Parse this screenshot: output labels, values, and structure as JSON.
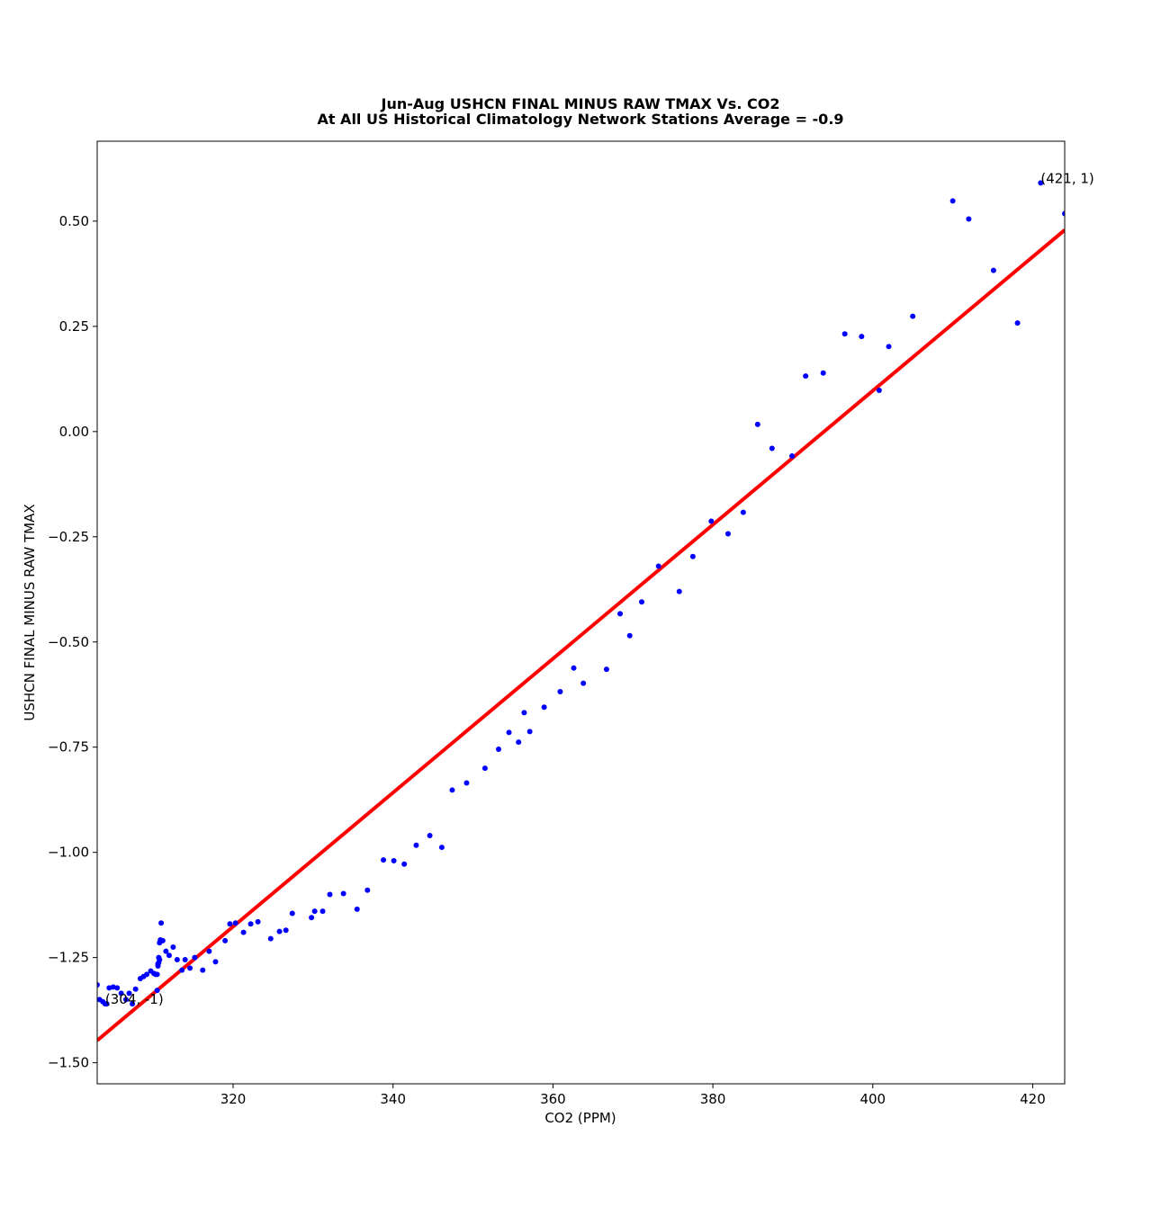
{
  "chart_data": {
    "type": "scatter",
    "title": "Jun-Aug USHCN FINAL MINUS RAW TMAX Vs. CO2",
    "subtitle": "At All US Historical Climatology Network Stations Average = -0.9",
    "xlabel": "CO2 (PPM)",
    "ylabel": "USHCN FINAL MINUS RAW TMAX",
    "xlim": [
      303,
      424
    ],
    "ylim": [
      -1.55,
      0.69
    ],
    "xticks": [
      320,
      340,
      360,
      380,
      400,
      420
    ],
    "xtick_labels": [
      "320",
      "340",
      "360",
      "380",
      "400",
      "420"
    ],
    "yticks": [
      -1.5,
      -1.25,
      -1.0,
      -0.75,
      -0.5,
      -0.25,
      0.0,
      0.25,
      0.5
    ],
    "ytick_labels": [
      "−1.50",
      "−1.25",
      "−1.00",
      "−0.75",
      "−0.50",
      "−0.25",
      "0.00",
      "0.25",
      "0.50"
    ],
    "grid": false,
    "point_color": "#0000ff",
    "trend_color": "#ff0000",
    "trendline": {
      "x": [
        303,
        424
      ],
      "y": [
        -1.447,
        0.479
      ]
    },
    "points": [
      [
        303.0,
        -1.315
      ],
      [
        303.3,
        -1.35
      ],
      [
        303.7,
        -1.355
      ],
      [
        304.0,
        -1.36
      ],
      [
        304.2,
        -1.36
      ],
      [
        304.5,
        -1.322
      ],
      [
        305.0,
        -1.32
      ],
      [
        305.5,
        -1.322
      ],
      [
        306.0,
        -1.335
      ],
      [
        306.6,
        -1.35
      ],
      [
        307.0,
        -1.335
      ],
      [
        307.4,
        -1.36
      ],
      [
        307.8,
        -1.325
      ],
      [
        308.4,
        -1.3
      ],
      [
        308.8,
        -1.295
      ],
      [
        309.2,
        -1.29
      ],
      [
        309.7,
        -1.282
      ],
      [
        310.1,
        -1.288
      ],
      [
        310.3,
        -1.29
      ],
      [
        310.5,
        -1.328
      ],
      [
        310.5,
        -1.29
      ],
      [
        310.6,
        -1.27
      ],
      [
        310.6,
        -1.265
      ],
      [
        310.7,
        -1.25
      ],
      [
        310.7,
        -1.262
      ],
      [
        310.8,
        -1.255
      ],
      [
        310.8,
        -1.215
      ],
      [
        310.9,
        -1.208
      ],
      [
        311.0,
        -1.168
      ],
      [
        311.2,
        -1.21
      ],
      [
        311.6,
        -1.235
      ],
      [
        312.0,
        -1.245
      ],
      [
        312.5,
        -1.225
      ],
      [
        313.0,
        -1.255
      ],
      [
        313.6,
        -1.28
      ],
      [
        314.0,
        -1.255
      ],
      [
        314.6,
        -1.275
      ],
      [
        315.2,
        -1.25
      ],
      [
        316.2,
        -1.28
      ],
      [
        317.0,
        -1.235
      ],
      [
        317.8,
        -1.26
      ],
      [
        319.0,
        -1.21
      ],
      [
        319.6,
        -1.17
      ],
      [
        320.3,
        -1.168
      ],
      [
        321.3,
        -1.19
      ],
      [
        322.2,
        -1.17
      ],
      [
        323.1,
        -1.165
      ],
      [
        324.7,
        -1.205
      ],
      [
        325.8,
        -1.188
      ],
      [
        326.6,
        -1.185
      ],
      [
        327.4,
        -1.145
      ],
      [
        329.8,
        -1.155
      ],
      [
        330.2,
        -1.14
      ],
      [
        331.2,
        -1.14
      ],
      [
        332.1,
        -1.1
      ],
      [
        333.8,
        -1.098
      ],
      [
        335.5,
        -1.135
      ],
      [
        336.8,
        -1.09
      ],
      [
        338.8,
        -1.018
      ],
      [
        340.1,
        -1.02
      ],
      [
        341.4,
        -1.028
      ],
      [
        342.9,
        -0.983
      ],
      [
        344.6,
        -0.96
      ],
      [
        346.1,
        -0.988
      ],
      [
        347.4,
        -0.852
      ],
      [
        349.2,
        -0.835
      ],
      [
        351.5,
        -0.8
      ],
      [
        353.2,
        -0.755
      ],
      [
        354.5,
        -0.715
      ],
      [
        355.7,
        -0.738
      ],
      [
        356.4,
        -0.668
      ],
      [
        357.1,
        -0.713
      ],
      [
        358.9,
        -0.655
      ],
      [
        360.9,
        -0.618
      ],
      [
        362.6,
        -0.562
      ],
      [
        363.8,
        -0.598
      ],
      [
        366.7,
        -0.565
      ],
      [
        368.4,
        -0.433
      ],
      [
        369.6,
        -0.485
      ],
      [
        371.1,
        -0.405
      ],
      [
        373.2,
        -0.32
      ],
      [
        375.8,
        -0.38
      ],
      [
        377.5,
        -0.297
      ],
      [
        379.8,
        -0.213
      ],
      [
        381.9,
        -0.243
      ],
      [
        383.8,
        -0.192
      ],
      [
        385.6,
        0.017
      ],
      [
        387.4,
        -0.04
      ],
      [
        389.9,
        -0.058
      ],
      [
        391.6,
        0.132
      ],
      [
        393.8,
        0.139
      ],
      [
        396.5,
        0.232
      ],
      [
        398.6,
        0.226
      ],
      [
        400.8,
        0.098
      ],
      [
        402.0,
        0.202
      ],
      [
        405.0,
        0.274
      ],
      [
        410.0,
        0.548
      ],
      [
        412.0,
        0.505
      ],
      [
        415.1,
        0.383
      ],
      [
        418.1,
        0.258
      ],
      [
        421.0,
        0.591
      ],
      [
        424.0,
        0.518
      ]
    ],
    "annotations": [
      {
        "text": "(421, 1)",
        "x": 421.0,
        "y": 0.591
      },
      {
        "text": "(304, -1)",
        "x": 304.0,
        "y": -1.36
      }
    ]
  }
}
